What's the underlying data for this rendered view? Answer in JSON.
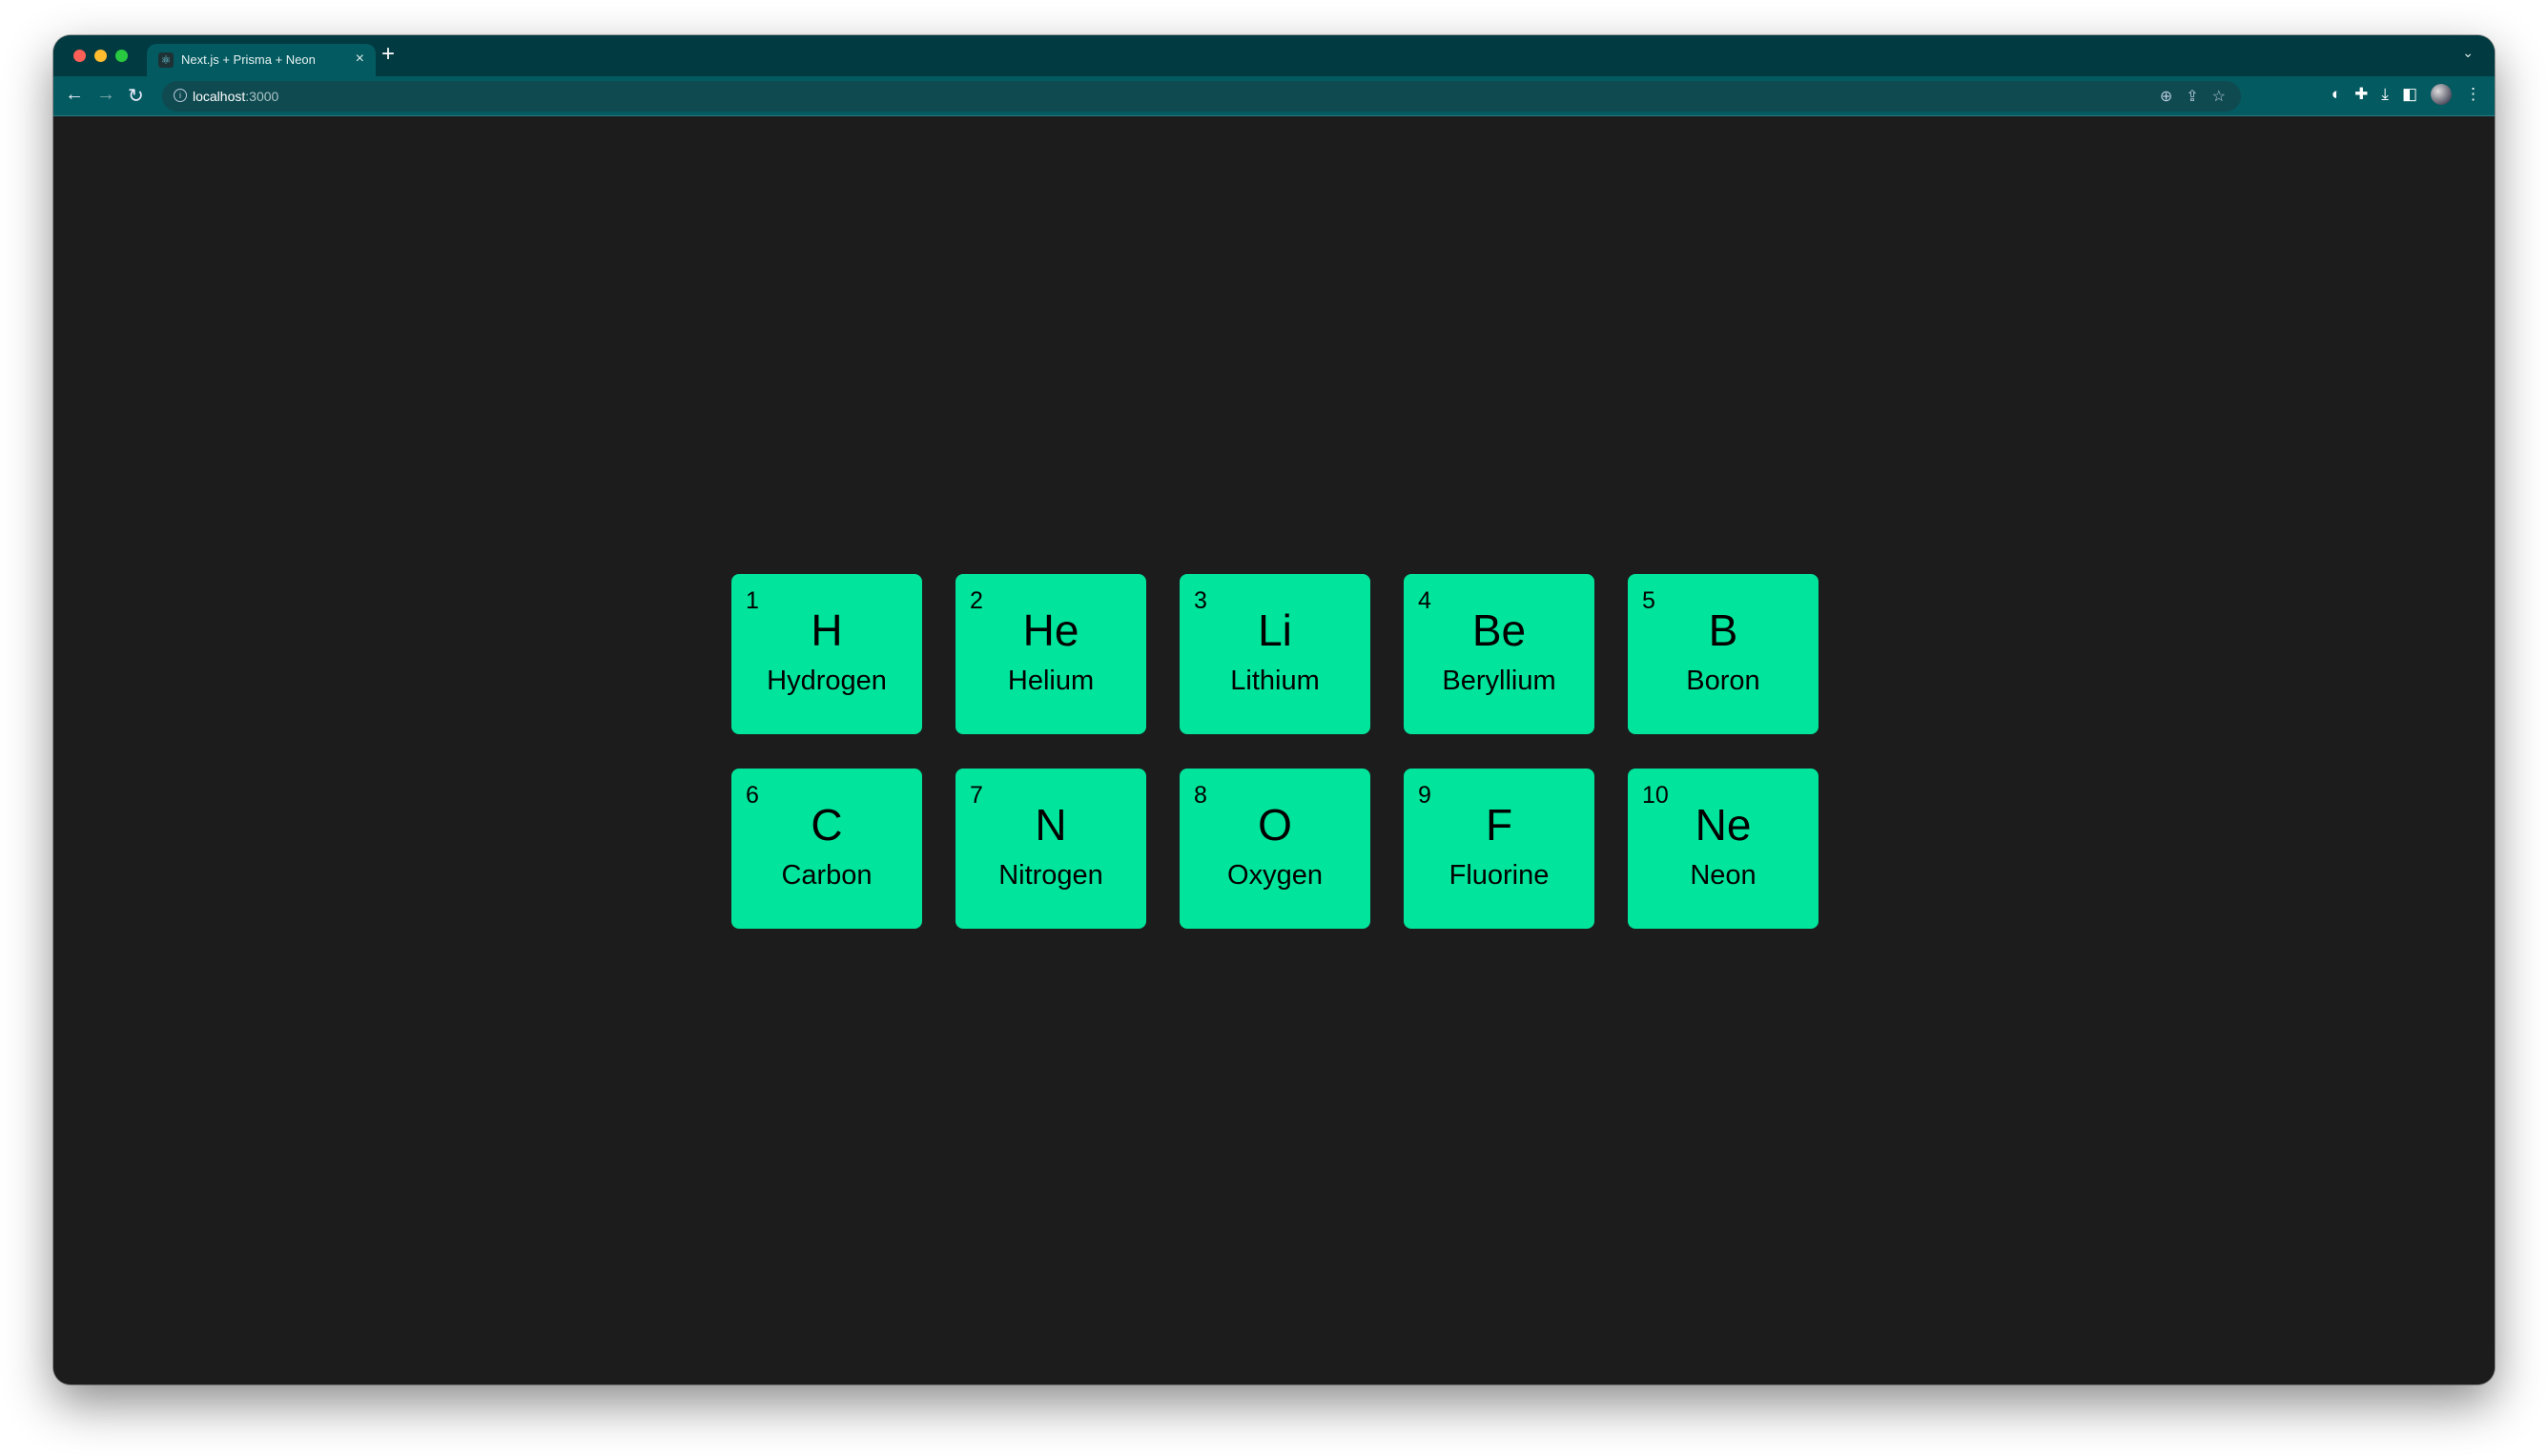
{
  "browser": {
    "tab_title": "Next.js + Prisma + Neon",
    "tab_close": "×",
    "new_tab": "+",
    "tab_menu": "⌄",
    "url_host": "localhost",
    "url_port": ":3000",
    "traffic_lights": [
      "#fe5f57",
      "#febc2e",
      "#28c840"
    ],
    "icons": [
      "back-icon",
      "forward-icon",
      "reload-icon",
      "info-icon",
      "zoom-icon",
      "share-icon",
      "star-icon",
      "privacy-extension-icon",
      "extensions-icon",
      "download-icon",
      "side-panel-icon",
      "profile-avatar",
      "more-menu-icon"
    ]
  },
  "theme": {
    "tile_color": "#00e59b",
    "background": "#1c1c1c"
  },
  "elements": [
    {
      "number": "1",
      "symbol": "H",
      "name": "Hydrogen"
    },
    {
      "number": "2",
      "symbol": "He",
      "name": "Helium"
    },
    {
      "number": "3",
      "symbol": "Li",
      "name": "Lithium"
    },
    {
      "number": "4",
      "symbol": "Be",
      "name": "Beryllium"
    },
    {
      "number": "5",
      "symbol": "B",
      "name": "Boron"
    },
    {
      "number": "6",
      "symbol": "C",
      "name": "Carbon"
    },
    {
      "number": "7",
      "symbol": "N",
      "name": "Nitrogen"
    },
    {
      "number": "8",
      "symbol": "O",
      "name": "Oxygen"
    },
    {
      "number": "9",
      "symbol": "F",
      "name": "Fluorine"
    },
    {
      "number": "10",
      "symbol": "Ne",
      "name": "Neon"
    }
  ]
}
